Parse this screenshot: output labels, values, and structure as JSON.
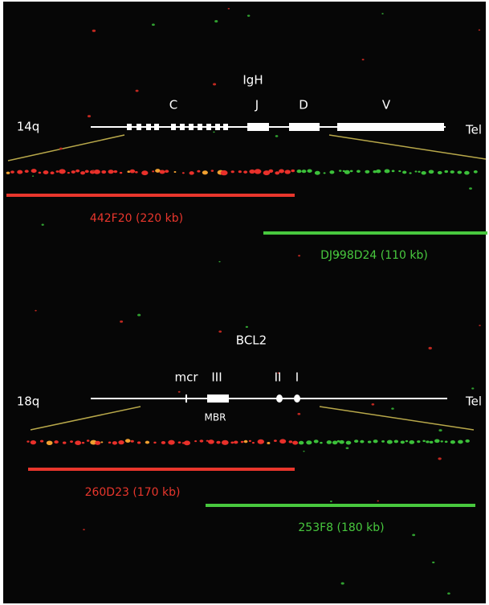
{
  "top": {
    "title": "IgH",
    "chromosome": "14q",
    "telomere": "Tel",
    "regions": [
      "C",
      "J",
      "D",
      "V"
    ],
    "red_probe": "442F20 (220 kb)",
    "green_probe": "DJ998D24 (110 kb)"
  },
  "bottom": {
    "title": "BCL2",
    "chromosome": "18q",
    "telomere": "Tel",
    "regions": [
      "mcr",
      "III",
      "II",
      "I"
    ],
    "sub_label": "MBR",
    "red_probe": "260D23 (170 kb)",
    "green_probe": "253F8 (180 kb)"
  }
}
